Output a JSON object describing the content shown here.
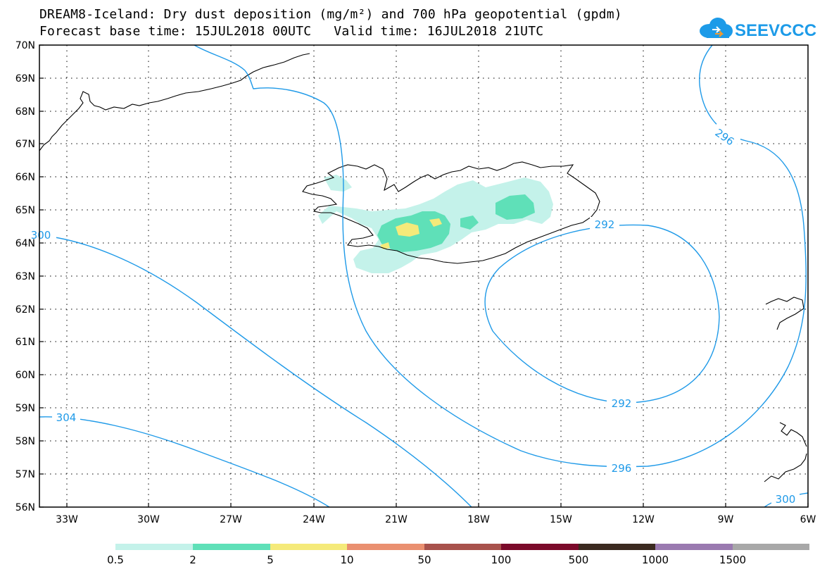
{
  "title": {
    "line1": "DREAM8-Iceland: Dry dust deposition (mg/m²) and 700 hPa geopotential (gpdm)",
    "base_time": "Forecast base time: 15JUL2018 00UTC",
    "valid_time": "Valid time: 16JUL2018 21UTC"
  },
  "logo": {
    "text": "SEEVCCC",
    "icon": "cloud-icon",
    "color": "#1d9be8"
  },
  "axes": {
    "lon_ticks": [
      "33W",
      "30W",
      "27W",
      "24W",
      "21W",
      "18W",
      "15W",
      "12W",
      "9W",
      "6W"
    ],
    "lat_ticks": [
      "70N",
      "69N",
      "68N",
      "67N",
      "66N",
      "65N",
      "64N",
      "63N",
      "62N",
      "61N",
      "60N",
      "59N",
      "58N",
      "57N",
      "56N"
    ],
    "lon_range": [
      -34,
      -6
    ],
    "lat_range": [
      56,
      70
    ]
  },
  "contour_labels": [
    "296",
    "292",
    "292",
    "296",
    "300",
    "304",
    "300"
  ],
  "legend": {
    "labels": [
      "0.5",
      "2",
      "5",
      "10",
      "50",
      "100",
      "500",
      "1000",
      "1500"
    ],
    "colors": [
      "#c4f2ea",
      "#5fe0b8",
      "#f5ea7a",
      "#ea9070",
      "#a8524c",
      "#7b0a2a",
      "#3b2a20",
      "#9a7ab0",
      "#a8a8a8"
    ]
  },
  "colors": {
    "contour": "#1f9ae8",
    "coast": "#000000"
  }
}
